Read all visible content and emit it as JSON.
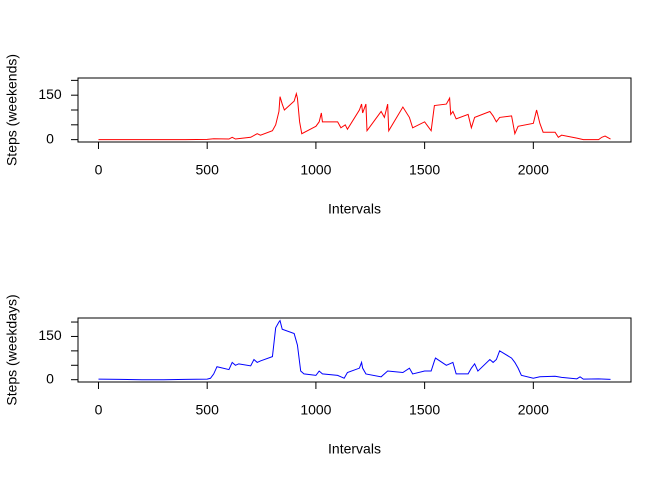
{
  "chart_data": [
    {
      "type": "line",
      "xlabel": "Intervals",
      "ylabel": "Steps (weekends)",
      "color": "#ff0000",
      "x": [
        0,
        100,
        200,
        300,
        400,
        500,
        530,
        600,
        615,
        630,
        700,
        730,
        745,
        800,
        815,
        830,
        835,
        845,
        855,
        900,
        910,
        915,
        925,
        935,
        1000,
        1015,
        1025,
        1030,
        1100,
        1115,
        1135,
        1145,
        1200,
        1210,
        1215,
        1230,
        1235,
        1300,
        1315,
        1330,
        1335,
        1400,
        1430,
        1445,
        1500,
        1530,
        1545,
        1600,
        1615,
        1620,
        1630,
        1645,
        1700,
        1715,
        1730,
        1800,
        1815,
        1830,
        1845,
        1900,
        1915,
        1930,
        2000,
        2015,
        2030,
        2045,
        2100,
        2115,
        2130,
        2200,
        2230,
        2300,
        2315,
        2330,
        2355
      ],
      "values": [
        0,
        0,
        0,
        0,
        0,
        1,
        3,
        2,
        8,
        2,
        8,
        20,
        15,
        30,
        50,
        95,
        145,
        120,
        100,
        130,
        155,
        140,
        60,
        20,
        45,
        60,
        90,
        60,
        60,
        40,
        50,
        35,
        100,
        120,
        90,
        120,
        30,
        95,
        75,
        120,
        30,
        110,
        75,
        40,
        60,
        30,
        115,
        120,
        140,
        85,
        95,
        70,
        85,
        40,
        75,
        95,
        80,
        60,
        75,
        80,
        20,
        45,
        55,
        100,
        55,
        25,
        25,
        8,
        15,
        5,
        0,
        0,
        8,
        12,
        2
      ],
      "xlim": [
        -94.2,
        2449.2
      ],
      "ylim": [
        -8,
        208
      ],
      "xticks": [
        0,
        500,
        1000,
        1500,
        2000
      ],
      "yticks": [
        0,
        {
          "value": 50,
          "label": null
        },
        {
          "value": 100,
          "label": null
        },
        150,
        {
          "value": 200,
          "label": null
        }
      ]
    },
    {
      "type": "line",
      "xlabel": "Intervals",
      "ylabel": "Steps (weekdays)",
      "color": "#0000ff",
      "x": [
        0,
        100,
        200,
        300,
        400,
        500,
        515,
        530,
        545,
        600,
        615,
        630,
        645,
        700,
        715,
        730,
        745,
        800,
        815,
        830,
        835,
        845,
        900,
        915,
        930,
        945,
        1000,
        1015,
        1030,
        1100,
        1115,
        1130,
        1145,
        1200,
        1210,
        1215,
        1230,
        1300,
        1330,
        1400,
        1430,
        1445,
        1500,
        1530,
        1545,
        1550,
        1600,
        1630,
        1645,
        1700,
        1715,
        1730,
        1745,
        1800,
        1815,
        1830,
        1845,
        1900,
        1915,
        1930,
        1945,
        2000,
        2030,
        2100,
        2130,
        2200,
        2215,
        2230,
        2300,
        2355
      ],
      "values": [
        2,
        1,
        0,
        0,
        1,
        2,
        5,
        20,
        45,
        35,
        60,
        50,
        55,
        48,
        70,
        60,
        65,
        80,
        180,
        200,
        205,
        175,
        160,
        120,
        30,
        20,
        15,
        30,
        20,
        15,
        10,
        5,
        25,
        40,
        60,
        40,
        20,
        10,
        30,
        25,
        40,
        20,
        30,
        30,
        65,
        75,
        50,
        60,
        20,
        20,
        40,
        55,
        30,
        70,
        60,
        70,
        100,
        75,
        60,
        40,
        15,
        5,
        10,
        12,
        8,
        3,
        10,
        2,
        3,
        1
      ],
      "xlim": [
        -94.2,
        2449.2
      ],
      "ylim": [
        -8,
        214
      ],
      "xticks": [
        0,
        500,
        1000,
        1500,
        2000
      ],
      "yticks": [
        0,
        {
          "value": 50,
          "label": null
        },
        {
          "value": 100,
          "label": null
        },
        150,
        {
          "value": 200,
          "label": null
        }
      ]
    }
  ]
}
